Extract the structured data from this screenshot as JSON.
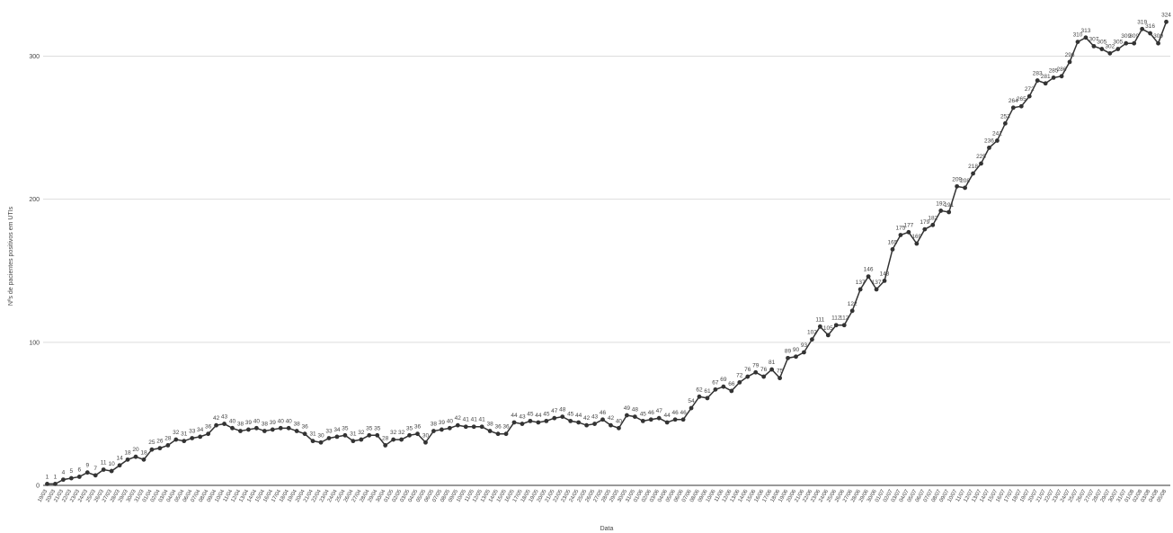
{
  "chart_data": {
    "type": "line",
    "x_label": "Data",
    "y_label": "Nºs de pacientes positivos em UTIs",
    "categories": [
      "19/03",
      "20/03",
      "21/03",
      "22/03",
      "23/03",
      "24/03",
      "25/03",
      "26/03",
      "27/03",
      "28/03",
      "29/03",
      "30/03",
      "31/03",
      "01/04",
      "02/04",
      "03/04",
      "04/04",
      "05/04",
      "06/04",
      "07/04",
      "08/04",
      "09/04",
      "10/04",
      "11/04",
      "12/04",
      "13/04",
      "14/04",
      "15/04",
      "16/04",
      "17/04",
      "18/04",
      "19/04",
      "20/04",
      "21/04",
      "22/04",
      "23/04",
      "24/04",
      "25/04",
      "26/04",
      "27/04",
      "28/04",
      "29/04",
      "30/04",
      "01/05",
      "02/05",
      "03/05",
      "04/05",
      "05/05",
      "06/05",
      "07/05",
      "08/05",
      "09/05",
      "10/05",
      "11/05",
      "12/05",
      "13/05",
      "14/05",
      "15/05",
      "16/05",
      "17/05",
      "18/05",
      "19/05",
      "20/05",
      "21/05",
      "22/05",
      "23/05",
      "24/05",
      "25/05",
      "26/05",
      "27/05",
      "28/05",
      "29/05",
      "30/05",
      "31/05",
      "01/06",
      "02/06",
      "03/06",
      "04/06",
      "05/06",
      "06/06",
      "07/06",
      "08/06",
      "09/06",
      "10/06",
      "11/06",
      "12/06",
      "13/06",
      "14/06",
      "15/06",
      "16/06",
      "17/06",
      "18/06",
      "19/06",
      "20/06",
      "21/06",
      "22/06",
      "23/06",
      "24/06",
      "25/06",
      "26/06",
      "27/06",
      "28/06",
      "29/06",
      "30/06",
      "01/07",
      "02/07",
      "03/07",
      "04/07",
      "05/07",
      "06/07",
      "07/07",
      "08/07",
      "09/07",
      "10/07",
      "11/07",
      "12/07",
      "13/07",
      "14/07",
      "15/07",
      "16/07",
      "17/07",
      "18/07",
      "19/07",
      "20/07",
      "21/07",
      "22/07",
      "23/07",
      "24/07",
      "25/07",
      "26/07",
      "27/07",
      "28/07",
      "29/07",
      "30/07",
      "31/07",
      "01/08",
      "02/08",
      "03/08",
      "04/08",
      "05/08"
    ],
    "series": [
      {
        "color": "#333333",
        "values": [
          1,
          1,
          4,
          5,
          6,
          9,
          7,
          11,
          10,
          14,
          18,
          20,
          18,
          25,
          26,
          28,
          32,
          31,
          33,
          34,
          36,
          42,
          43,
          40,
          38,
          39,
          40,
          38,
          39,
          40,
          40,
          38,
          36,
          31,
          30,
          33,
          34,
          35,
          31,
          32,
          35,
          35,
          28,
          32,
          32,
          35,
          36,
          30,
          38,
          39,
          40,
          42,
          41,
          41,
          41,
          38,
          36,
          36,
          44,
          43,
          45,
          44,
          45,
          47,
          48,
          45,
          44,
          42,
          43,
          46,
          42,
          40,
          49,
          48,
          45,
          46,
          47,
          44,
          46,
          46,
          54,
          62,
          61,
          67,
          69,
          66,
          72,
          76,
          79,
          76,
          81,
          75,
          89,
          90,
          93,
          102,
          111,
          105,
          112,
          112,
          122,
          137,
          146,
          137,
          143,
          165,
          175,
          177,
          169,
          179,
          182,
          192,
          191,
          209,
          208,
          218,
          225,
          236,
          241,
          253,
          264,
          265,
          272,
          283,
          281,
          285,
          286,
          296,
          310,
          313,
          307,
          305,
          302,
          305,
          309,
          309,
          319,
          316,
          309,
          324
        ]
      }
    ],
    "ylim": [
      0,
      333
    ],
    "yticks": [
      0,
      100,
      200,
      300
    ],
    "grid": true
  }
}
